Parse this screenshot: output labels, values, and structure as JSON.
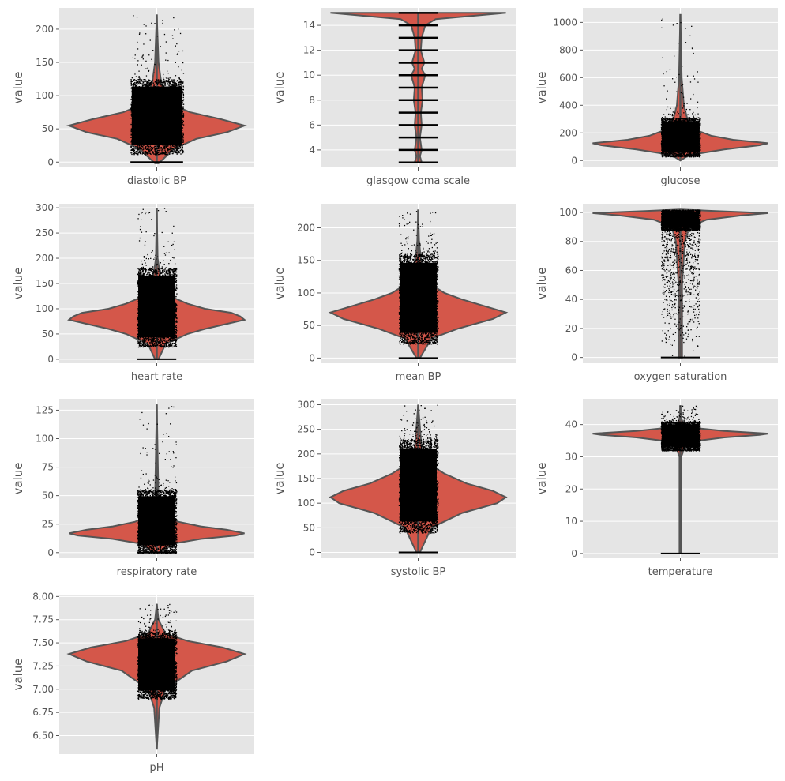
{
  "chart_data": [
    {
      "type": "violin",
      "category": "diastolic BP",
      "ylabel": "value",
      "ylim": [
        -8,
        232
      ],
      "yticks": [
        0,
        50,
        100,
        150,
        200
      ],
      "ytick_labels": [
        "0",
        "50",
        "100",
        "150",
        "200"
      ],
      "grid": true,
      "violin": {
        "min": 0,
        "max": 222,
        "profile": [
          [
            -2,
            0.02
          ],
          [
            20,
            0.2
          ],
          [
            35,
            0.45
          ],
          [
            45,
            0.8
          ],
          [
            55,
            1.0
          ],
          [
            65,
            0.72
          ],
          [
            75,
            0.38
          ],
          [
            85,
            0.2
          ],
          [
            100,
            0.12
          ],
          [
            120,
            0.05
          ],
          [
            150,
            0.02
          ],
          [
            222,
            0.0
          ]
        ]
      },
      "dots": {
        "core_min": 12,
        "core_max": 125,
        "tail_max": 222,
        "zero_line": true,
        "halfwidth_frac": 0.27
      }
    },
    {
      "type": "violin",
      "category": "glasgow coma scale",
      "ylabel": "value",
      "ylim": [
        2.6,
        15.4
      ],
      "yticks": [
        4,
        6,
        8,
        10,
        12,
        14
      ],
      "ytick_labels": [
        "4",
        "6",
        "8",
        "10",
        "12",
        "14"
      ],
      "grid": true,
      "violin": {
        "min": 3,
        "max": 15,
        "profile": [
          [
            3,
            0.04
          ],
          [
            3.5,
            0.02
          ],
          [
            4,
            0.04
          ],
          [
            5,
            0.02
          ],
          [
            6,
            0.04
          ],
          [
            7,
            0.03
          ],
          [
            8,
            0.05
          ],
          [
            9,
            0.04
          ],
          [
            10,
            0.08
          ],
          [
            10.5,
            0.04
          ],
          [
            11,
            0.07
          ],
          [
            12,
            0.03
          ],
          [
            13,
            0.04
          ],
          [
            14,
            0.08
          ],
          [
            14.5,
            0.2
          ],
          [
            15,
            1.0
          ]
        ]
      },
      "levels": [
        3,
        4,
        5,
        6,
        7,
        8,
        9,
        10,
        11,
        12,
        13,
        14,
        15
      ],
      "level_halfwidth_frac": 0.1
    },
    {
      "type": "violin",
      "category": "glucose",
      "ylabel": "value",
      "ylim": [
        -50,
        1105
      ],
      "yticks": [
        0,
        200,
        400,
        600,
        800,
        1000
      ],
      "ytick_labels": [
        "0",
        "200",
        "400",
        "600",
        "800",
        "1000"
      ],
      "grid": true,
      "violin": {
        "min": 0,
        "max": 1060,
        "profile": [
          [
            0,
            0.0
          ],
          [
            40,
            0.1
          ],
          [
            80,
            0.5
          ],
          [
            110,
            0.9
          ],
          [
            125,
            1.0
          ],
          [
            150,
            0.6
          ],
          [
            180,
            0.35
          ],
          [
            220,
            0.18
          ],
          [
            300,
            0.08
          ],
          [
            400,
            0.04
          ],
          [
            600,
            0.015
          ],
          [
            1060,
            0.0
          ]
        ]
      },
      "dots": {
        "core_min": 30,
        "core_max": 310,
        "tail_max": 1060,
        "zero_line": false,
        "halfwidth_frac": 0.2
      }
    },
    {
      "type": "violin",
      "category": "heart rate",
      "ylabel": "value",
      "ylim": [
        -8,
        308
      ],
      "yticks": [
        0,
        50,
        100,
        150,
        200,
        250,
        300
      ],
      "ytick_labels": [
        "0",
        "50",
        "100",
        "150",
        "200",
        "250",
        "300"
      ],
      "grid": true,
      "violin": {
        "min": 0,
        "max": 300,
        "profile": [
          [
            0,
            0.02
          ],
          [
            30,
            0.1
          ],
          [
            50,
            0.35
          ],
          [
            60,
            0.55
          ],
          [
            70,
            0.8
          ],
          [
            78,
            1.0
          ],
          [
            85,
            0.95
          ],
          [
            92,
            0.85
          ],
          [
            100,
            0.55
          ],
          [
            110,
            0.35
          ],
          [
            125,
            0.15
          ],
          [
            150,
            0.05
          ],
          [
            200,
            0.01
          ],
          [
            300,
            0.0
          ]
        ]
      },
      "dots": {
        "core_min": 25,
        "core_max": 180,
        "tail_max": 300,
        "zero_line": true,
        "halfwidth_frac": 0.2
      }
    },
    {
      "type": "violin",
      "category": "mean BP",
      "ylabel": "value",
      "ylim": [
        -8,
        237
      ],
      "yticks": [
        0,
        50,
        100,
        150,
        200
      ],
      "ytick_labels": [
        "0",
        "50",
        "100",
        "150",
        "200"
      ],
      "grid": true,
      "violin": {
        "min": 0,
        "max": 228,
        "profile": [
          [
            0,
            0.02
          ],
          [
            30,
            0.15
          ],
          [
            45,
            0.45
          ],
          [
            60,
            0.85
          ],
          [
            70,
            1.0
          ],
          [
            80,
            0.75
          ],
          [
            90,
            0.5
          ],
          [
            100,
            0.3
          ],
          [
            115,
            0.12
          ],
          [
            140,
            0.04
          ],
          [
            180,
            0.01
          ],
          [
            228,
            0.0
          ]
        ]
      },
      "dots": {
        "core_min": 22,
        "core_max": 160,
        "tail_max": 228,
        "zero_line": true,
        "halfwidth_frac": 0.2
      }
    },
    {
      "type": "violin",
      "category": "oxygen saturation",
      "ylabel": "value",
      "ylim": [
        -4,
        106
      ],
      "yticks": [
        0,
        20,
        40,
        60,
        80,
        100
      ],
      "ytick_labels": [
        "0",
        "20",
        "40",
        "60",
        "80",
        "100"
      ],
      "grid": true,
      "violin": {
        "min": 0,
        "max": 102,
        "profile": [
          [
            0,
            0.02
          ],
          [
            50,
            0.02
          ],
          [
            80,
            0.05
          ],
          [
            90,
            0.1
          ],
          [
            95,
            0.3
          ],
          [
            98,
            0.7
          ],
          [
            99.5,
            1.0
          ],
          [
            101,
            0.4
          ],
          [
            102,
            0.0
          ]
        ]
      },
      "dots": {
        "core_min": 88,
        "core_max": 102,
        "tail_min": 0,
        "zero_line": true,
        "halfwidth_frac": 0.2
      }
    },
    {
      "type": "violin",
      "category": "respiratory rate",
      "ylabel": "value",
      "ylim": [
        -5,
        135
      ],
      "yticks": [
        0,
        25,
        50,
        75,
        100,
        125
      ],
      "ytick_labels": [
        "0",
        "25",
        "50",
        "75",
        "100",
        "125"
      ],
      "grid": true,
      "violin": {
        "min": 0,
        "max": 130,
        "profile": [
          [
            0,
            0.03
          ],
          [
            8,
            0.2
          ],
          [
            12,
            0.5
          ],
          [
            15,
            0.9
          ],
          [
            17,
            1.0
          ],
          [
            20,
            0.8
          ],
          [
            23,
            0.5
          ],
          [
            27,
            0.25
          ],
          [
            32,
            0.08
          ],
          [
            45,
            0.02
          ],
          [
            130,
            0.0
          ]
        ]
      },
      "dots": {
        "core_min": 0,
        "core_max": 55,
        "tail_max": 130,
        "zero_line": true,
        "halfwidth_frac": 0.2
      }
    },
    {
      "type": "violin",
      "category": "systolic BP",
      "ylabel": "value",
      "ylim": [
        -12,
        312
      ],
      "yticks": [
        0,
        50,
        100,
        150,
        200,
        250,
        300
      ],
      "ytick_labels": [
        "0",
        "50",
        "100",
        "150",
        "200",
        "250",
        "300"
      ],
      "grid": true,
      "violin": {
        "min": 0,
        "max": 300,
        "profile": [
          [
            0,
            0.02
          ],
          [
            50,
            0.15
          ],
          [
            80,
            0.5
          ],
          [
            100,
            0.9
          ],
          [
            112,
            1.0
          ],
          [
            125,
            0.85
          ],
          [
            140,
            0.55
          ],
          [
            160,
            0.3
          ],
          [
            180,
            0.12
          ],
          [
            210,
            0.04
          ],
          [
            300,
            0.0
          ]
        ]
      },
      "dots": {
        "core_min": 40,
        "core_max": 230,
        "tail_max": 300,
        "zero_line": true,
        "halfwidth_frac": 0.2
      }
    },
    {
      "type": "violin",
      "category": "temperature",
      "ylabel": "value",
      "ylim": [
        -1.5,
        48
      ],
      "yticks": [
        0,
        10,
        20,
        30,
        40
      ],
      "ytick_labels": [
        "0",
        "10",
        "20",
        "30",
        "40"
      ],
      "grid": true,
      "violin": {
        "min": 0,
        "max": 46,
        "profile": [
          [
            0,
            0.01
          ],
          [
            30,
            0.01
          ],
          [
            33,
            0.05
          ],
          [
            35,
            0.2
          ],
          [
            36,
            0.5
          ],
          [
            36.8,
            0.9
          ],
          [
            37.2,
            1.0
          ],
          [
            38,
            0.5
          ],
          [
            39,
            0.15
          ],
          [
            40,
            0.04
          ],
          [
            42,
            0.01
          ],
          [
            46,
            0.0
          ]
        ]
      },
      "dots": {
        "core_min": 32,
        "core_max": 41,
        "tail_max": 46,
        "zero_line": true,
        "halfwidth_frac": 0.2
      }
    },
    {
      "type": "violin",
      "category": "pH",
      "ylabel": "value",
      "ylim": [
        6.3,
        8.02
      ],
      "yticks": [
        6.5,
        6.75,
        7.0,
        7.25,
        7.5,
        7.75,
        8.0
      ],
      "ytick_labels": [
        "6.50",
        "6.75",
        "7.00",
        "7.25",
        "7.50",
        "7.75",
        "8.00"
      ],
      "grid": true,
      "violin": {
        "min": 6.35,
        "max": 7.92,
        "profile": [
          [
            6.35,
            0.0
          ],
          [
            6.8,
            0.03
          ],
          [
            7.0,
            0.1
          ],
          [
            7.2,
            0.4
          ],
          [
            7.3,
            0.8
          ],
          [
            7.38,
            1.0
          ],
          [
            7.45,
            0.75
          ],
          [
            7.52,
            0.35
          ],
          [
            7.6,
            0.1
          ],
          [
            7.75,
            0.02
          ],
          [
            7.92,
            0.0
          ]
        ]
      },
      "dots": {
        "core_min": 6.9,
        "core_max": 7.62,
        "tail_max": 7.92,
        "zero_line": false,
        "halfwidth_frac": 0.2
      }
    }
  ]
}
